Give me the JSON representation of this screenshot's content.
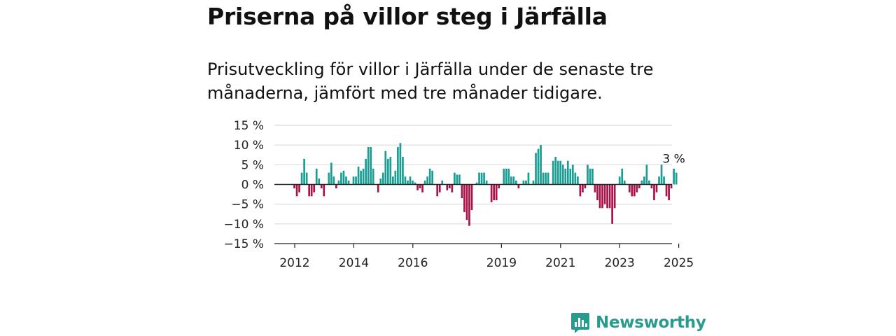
{
  "title": "Priserna på villor steg i Järfälla",
  "subtitle": "Prisutveckling för villor i Järfälla under de senaste tre månaderna, jämfört med tre månader tidigare.",
  "brand": {
    "name": "Newsworthy",
    "color": "#2a9a8f"
  },
  "colors": {
    "positive": "#1a9e93",
    "negative": "#a8134a",
    "grid": "#d6d6d6",
    "zero": "#222222"
  },
  "chart_data": {
    "type": "bar",
    "title": "",
    "xlabel": "",
    "ylabel": "",
    "ylim": [
      -15,
      15
    ],
    "grid": true,
    "y_ticks": [
      15,
      10,
      5,
      0,
      -5,
      -10,
      -15
    ],
    "y_tick_labels": [
      "15 %",
      "10 %",
      "5 %",
      "0 %",
      "−5 %",
      "−10 %",
      "−15 %"
    ],
    "x_ticks": [
      "2012",
      "2014",
      "2016",
      "2019",
      "2021",
      "2023",
      "2025"
    ],
    "annotation": "3 %",
    "start": "2011-12",
    "values": [
      -1,
      -3,
      -2,
      3,
      6.5,
      3,
      -3,
      -3,
      -2,
      4,
      1.5,
      -1,
      -3,
      0,
      3,
      5.5,
      2,
      -1,
      1,
      3,
      3.5,
      2,
      1,
      0,
      2,
      2,
      4.5,
      3.5,
      4,
      6.5,
      9.5,
      9.5,
      4,
      0,
      -2,
      1.5,
      3,
      8.5,
      6.5,
      7,
      2,
      3.5,
      9.5,
      10.5,
      7,
      2,
      1,
      2,
      1,
      0.5,
      -1.5,
      -1,
      -2,
      1,
      2,
      4,
      3.5,
      0,
      -3,
      -2,
      1,
      0,
      -1.5,
      -1,
      -2,
      3,
      2.5,
      2.5,
      -3.5,
      -7,
      -9,
      -10.5,
      -6.5,
      0,
      0.5,
      3,
      3,
      3,
      1,
      0,
      -4.5,
      -4,
      -4,
      -1,
      0,
      4,
      4,
      4,
      2,
      2,
      1,
      -1,
      0,
      1,
      1,
      3,
      0,
      1,
      8,
      9,
      10,
      3,
      3,
      3,
      0,
      6,
      7,
      6,
      6,
      5,
      4,
      6,
      4,
      5,
      3,
      2,
      -3,
      -2,
      -1,
      5,
      4,
      4,
      -2,
      -4,
      -6,
      -6,
      -5,
      -6,
      -6,
      -10,
      -6,
      0,
      2,
      4,
      1,
      0,
      -2,
      -3,
      -3,
      -2,
      -1,
      1,
      2,
      5,
      1,
      -1,
      -4,
      -2,
      2,
      5,
      2,
      -3,
      -4,
      -1,
      4,
      3
    ]
  }
}
